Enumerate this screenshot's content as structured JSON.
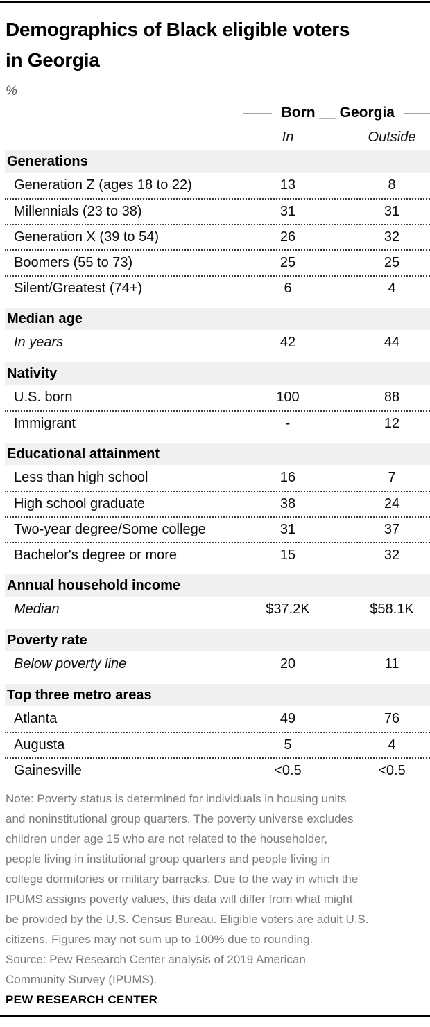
{
  "chart_data": {
    "type": "table",
    "title": "Demographics of Black eligible voters in Georgia",
    "title_lines": [
      "Demographics of Black eligible voters",
      "in Georgia"
    ],
    "unit_label": "%",
    "column_group_label": "Born __ Georgia",
    "columns": [
      "In",
      "Outside"
    ],
    "sections": [
      {
        "label": "Generations",
        "rows": [
          {
            "label": "Generation Z (ages 18 to 22)",
            "in": "13",
            "outside": "8"
          },
          {
            "label": "Millennials (23 to 38)",
            "in": "31",
            "outside": "31"
          },
          {
            "label": "Generation X (39 to 54)",
            "in": "26",
            "outside": "32"
          },
          {
            "label": "Boomers (55 to 73)",
            "in": "25",
            "outside": "25"
          },
          {
            "label": "Silent/Greatest (74+)",
            "in": "6",
            "outside": "4"
          }
        ]
      },
      {
        "label": "Median age",
        "rows": [
          {
            "label": "In years",
            "italic": true,
            "in": "42",
            "outside": "44"
          }
        ]
      },
      {
        "label": "Nativity",
        "rows": [
          {
            "label": "U.S. born",
            "in": "100",
            "outside": "88"
          },
          {
            "label": "Immigrant",
            "in": "-",
            "outside": "12"
          }
        ]
      },
      {
        "label": "Educational attainment",
        "rows": [
          {
            "label": "Less than high school",
            "in": "16",
            "outside": "7"
          },
          {
            "label": "High school graduate",
            "in": "38",
            "outside": "24"
          },
          {
            "label": "Two-year degree/Some college",
            "in": "31",
            "outside": "37"
          },
          {
            "label": "Bachelor's degree or more",
            "in": "15",
            "outside": "32"
          }
        ]
      },
      {
        "label": "Annual household income",
        "rows": [
          {
            "label": "Median",
            "italic": true,
            "in": "$37.2K",
            "outside": "$58.1K"
          }
        ]
      },
      {
        "label": "Poverty rate",
        "rows": [
          {
            "label": "Below poverty line",
            "italic": true,
            "in": "20",
            "outside": "11"
          }
        ]
      },
      {
        "label": "Top three metro areas",
        "rows": [
          {
            "label": "Atlanta",
            "in": "49",
            "outside": "76"
          },
          {
            "label": "Augusta",
            "in": "5",
            "outside": "4"
          },
          {
            "label": "Gainesville",
            "in": "<0.5",
            "outside": "<0.5"
          }
        ]
      }
    ],
    "notes": {
      "note_lines": [
        "Note: Poverty status is determined for individuals in housing units",
        "and noninstitutional group quarters. The poverty universe excludes",
        "children under age 15 who are not related to the householder,",
        "people living in institutional group quarters and people living in",
        "college dormitories or military barracks. Due to the way in which the",
        "IPUMS assigns poverty values, this data will differ from what might",
        "be provided by the U.S. Census Bureau. Eligible voters are adult U.S.",
        "citizens. Figures may not sum up to 100% due to rounding."
      ],
      "source_lines": [
        "Source: Pew Research Center analysis of 2019 American",
        "Community Survey (IPUMS)."
      ],
      "brand": "PEW RESEARCH CENTER"
    },
    "colors": {
      "section_header_bg": "#f0f0f1",
      "note_gray": "#7a7a7a",
      "rule_black": "#000000",
      "text_black": "#0a0a0a"
    }
  }
}
